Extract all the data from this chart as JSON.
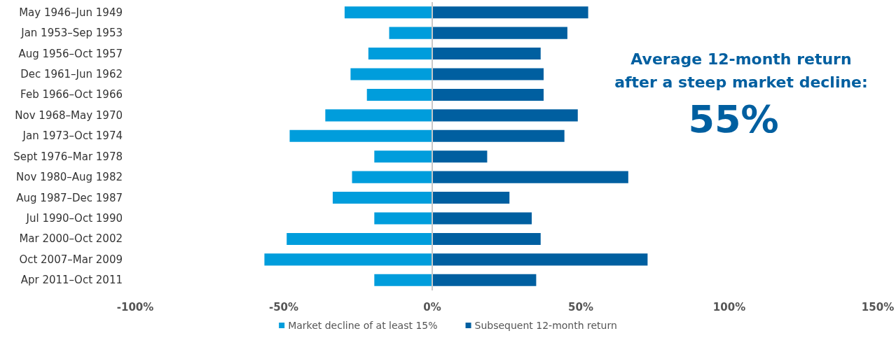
{
  "chart_data": {
    "type": "bar",
    "orientation": "horizontal",
    "categories": [
      "May 1946–Jun 1949",
      "Jan 1953–Sep 1953",
      "Aug 1956–Oct 1957",
      "Dec 1961–Jun 1962",
      "Feb 1966–Oct 1966",
      "Nov 1968–May 1970",
      "Jan 1973–Oct 1974",
      "Sept 1976–Mar 1978",
      "Nov 1980–Aug 1982",
      "Aug 1987–Dec 1987",
      "Jul 1990–Oct 1990",
      "Mar 2000–Oct 2002",
      "Oct 2007–Mar 2009",
      "Apr 2011–Oct 2011"
    ],
    "series": [
      {
        "name": "Market decline of at least 15%",
        "color": "#009ddc",
        "values": [
          -29.5,
          -14.5,
          -21.5,
          -27.5,
          -22,
          -36,
          -48,
          -19.5,
          -27,
          -33.5,
          -19.5,
          -49,
          -56.5,
          -19.5
        ]
      },
      {
        "name": "Subsequent 12-month return",
        "color": "#005fa0",
        "values": [
          52.5,
          45.5,
          36.5,
          37.5,
          37.5,
          49,
          44.5,
          18.5,
          66,
          26,
          33.5,
          36.5,
          72.5,
          35
        ]
      }
    ],
    "xlim": [
      -100,
      150
    ],
    "xticks": [
      {
        "value": -100,
        "label": "-100%"
      },
      {
        "value": -50,
        "label": "-50%"
      },
      {
        "value": 0,
        "label": "0%"
      },
      {
        "value": 50,
        "label": "50%"
      },
      {
        "value": 100,
        "label": "100%"
      },
      {
        "value": 150,
        "label": "150%"
      }
    ],
    "annotations": [
      "Average 12-month return",
      "after a steep market decline:",
      "55%"
    ],
    "ref_lines": [
      {
        "axis": "x",
        "value": 0,
        "color": "#c8c8c8"
      }
    ],
    "stacked": true,
    "grid": false,
    "legend": "bottom"
  }
}
